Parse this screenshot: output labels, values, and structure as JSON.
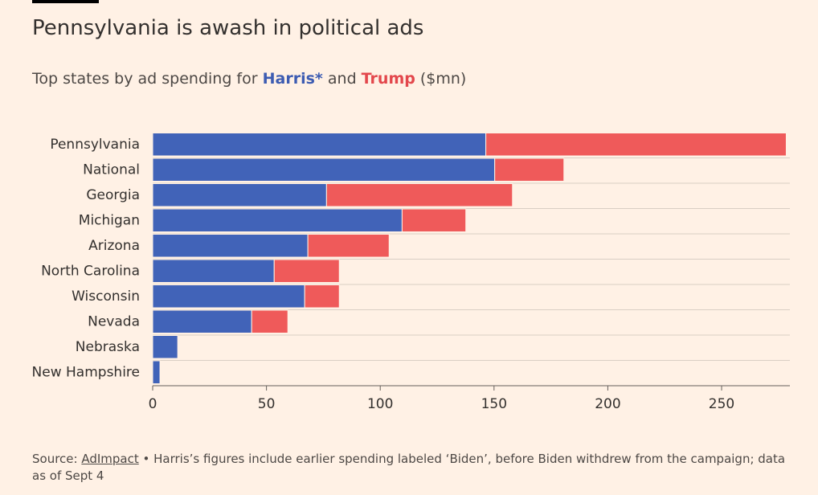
{
  "chart_data": {
    "type": "stacked-barh",
    "title": "Pennsylvania is awash in political ads",
    "subtitle_prefix": "Top states by ad spending for ",
    "subtitle_middle": " and ",
    "subtitle_suffix": " ($mn)",
    "categories": [
      "Pennsylvania",
      "National",
      "Georgia",
      "Michigan",
      "Arizona",
      "North Carolina",
      "Wisconsin",
      "Nevada",
      "Nebraska",
      "New Hampshire"
    ],
    "series": [
      {
        "name": "Harris*",
        "color": "#4163b8",
        "values": [
          146.4,
          150.3,
          76.4,
          109.6,
          68.2,
          53.4,
          66.8,
          43.5,
          11,
          3.2
        ]
      },
      {
        "name": "Trump",
        "color": "#ef5a5a",
        "values": [
          132,
          30.4,
          81.7,
          28,
          35.7,
          28.6,
          15.2,
          15.9,
          0,
          0
        ]
      }
    ],
    "xlim": [
      0,
      280
    ],
    "xticks": [
      0,
      50,
      100,
      150,
      200,
      250
    ],
    "source": {
      "label": "Source: ",
      "link": "AdImpact",
      "note": " • Harris’s figures include earlier spending labeled ‘Biden’, before Biden withdrew from the campaign; data as of Sept 4"
    }
  }
}
